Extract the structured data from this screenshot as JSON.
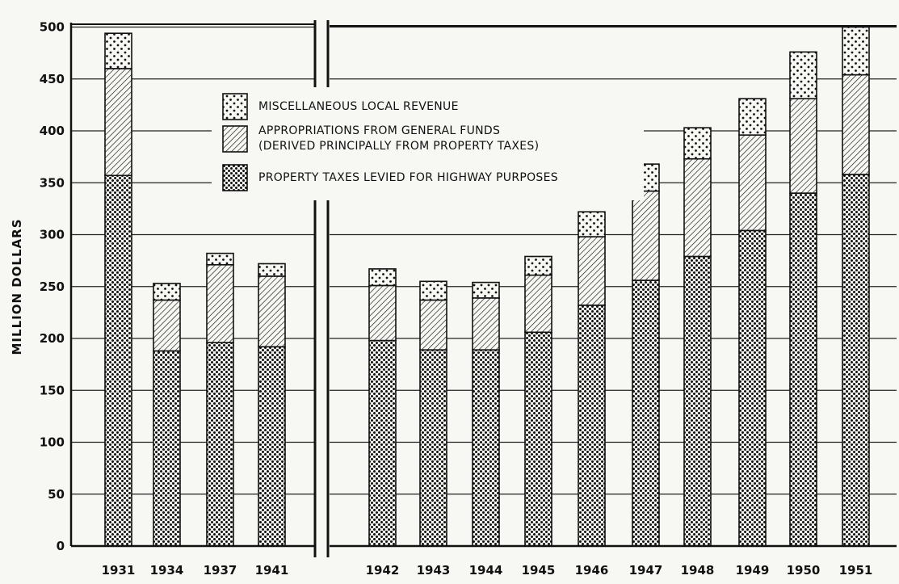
{
  "chart_data": {
    "type": "bar",
    "stacked": true,
    "ylabel": "MILLION DOLLARS",
    "ylim": [
      0,
      500
    ],
    "yticks": [
      0,
      50,
      100,
      150,
      200,
      250,
      300,
      350,
      400,
      450,
      500
    ],
    "categories": [
      "1931",
      "1934",
      "1937",
      "1941",
      "1942",
      "1943",
      "1944",
      "1945",
      "1946",
      "1947",
      "1948",
      "1949",
      "1950",
      "1951"
    ],
    "panels": [
      {
        "categories": [
          "1931",
          "1934",
          "1937",
          "1941"
        ]
      },
      {
        "categories": [
          "1942",
          "1943",
          "1944",
          "1945",
          "1946",
          "1947",
          "1948",
          "1949",
          "1950",
          "1951"
        ]
      }
    ],
    "series": [
      {
        "name": "PROPERTY TAXES LEVIED FOR HIGHWAY PURPOSES",
        "pattern": "dense-dots",
        "values": [
          357,
          188,
          196,
          192,
          198,
          189,
          189,
          206,
          232,
          256,
          279,
          304,
          340,
          358
        ]
      },
      {
        "name": "APPROPRIATIONS FROM GENERAL FUNDS (DERIVED PRINCIPALLY FROM PROPERTY TAXES)",
        "pattern": "diagonal-hatch",
        "values": [
          103,
          49,
          75,
          68,
          53,
          48,
          50,
          55,
          66,
          86,
          94,
          92,
          91,
          96
        ]
      },
      {
        "name": "MISCELLANEOUS LOCAL REVENUE",
        "pattern": "sparse-dots",
        "values": [
          34,
          16,
          11,
          12,
          16,
          18,
          15,
          18,
          24,
          26,
          30,
          35,
          45,
          46
        ]
      }
    ],
    "legend": {
      "position": "top-center",
      "items": [
        {
          "pattern": "sparse-dots",
          "lines": [
            "MISCELLANEOUS LOCAL REVENUE"
          ]
        },
        {
          "pattern": "diagonal-hatch",
          "lines": [
            "APPROPRIATIONS FROM GENERAL FUNDS",
            "(DERIVED PRINCIPALLY FROM PROPERTY TAXES)"
          ]
        },
        {
          "pattern": "dense-dots",
          "lines": [
            "PROPERTY TAXES LEVIED FOR HIGHWAY PURPOSES"
          ]
        }
      ]
    },
    "grid": true,
    "colors": {
      "ink": "#111111",
      "paper": "#f7f7f3"
    }
  }
}
